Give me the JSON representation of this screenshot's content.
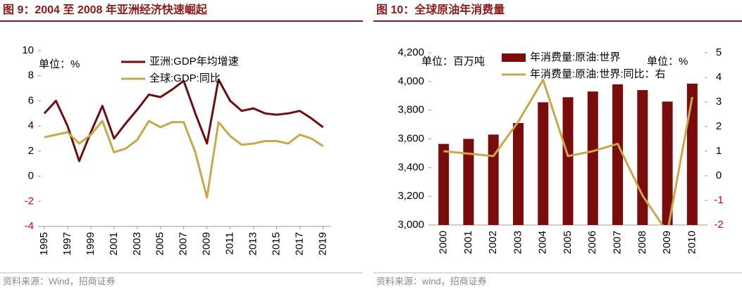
{
  "chart_data": [
    {
      "type": "line",
      "title": "图 9：2004 至 2008 年亚洲经济快速崛起",
      "unit": "单位：%",
      "source": "资料来源：Wind，招商证券",
      "x": [
        1995,
        1996,
        1997,
        1998,
        1999,
        2000,
        2001,
        2002,
        2003,
        2004,
        2005,
        2006,
        2007,
        2008,
        2009,
        2010,
        2011,
        2012,
        2013,
        2014,
        2015,
        2016,
        2017,
        2018,
        2019
      ],
      "xlim": [
        1994.7,
        2019.7
      ],
      "xticks": [
        1995,
        1997,
        1999,
        2001,
        2003,
        2005,
        2007,
        2009,
        2011,
        2013,
        2015,
        2017,
        2019
      ],
      "ylim": [
        -4,
        10
      ],
      "yticks": [
        -4,
        -2,
        0,
        2,
        4,
        6,
        8,
        10
      ],
      "series": [
        {
          "name": "亚洲:GDP年均增速",
          "color": "#6b0f12",
          "values": [
            5.0,
            6.0,
            4.0,
            1.2,
            3.5,
            5.6,
            3.0,
            4.2,
            5.3,
            6.5,
            6.3,
            6.9,
            7.6,
            5.0,
            2.6,
            7.7,
            6.0,
            5.2,
            5.4,
            5.0,
            4.9,
            5.0,
            5.2,
            4.6,
            3.9
          ]
        },
        {
          "name": "全球:GDP:同比",
          "color": "#c8a84b",
          "values": [
            3.1,
            3.3,
            3.5,
            2.6,
            3.3,
            4.4,
            1.9,
            2.2,
            2.9,
            4.4,
            3.9,
            4.3,
            4.3,
            1.9,
            -1.7,
            4.3,
            3.2,
            2.5,
            2.6,
            2.8,
            2.8,
            2.6,
            3.3,
            3.0,
            2.4
          ]
        }
      ]
    },
    {
      "type": "bar",
      "title": "图 10：全球原油年消费量",
      "unit": "单位：百万吨",
      "unit2": "单位：%",
      "source": "资料来源：wind，招商证券",
      "categories": [
        "2000",
        "2001",
        "2002",
        "2003",
        "2004",
        "2005",
        "2006",
        "2007",
        "2008",
        "2009",
        "2010"
      ],
      "ylim": [
        3000,
        4200
      ],
      "yticks": [
        {
          "value": 3000,
          "label": "3,000"
        },
        {
          "value": 3200,
          "label": "3,200"
        },
        {
          "value": 3400,
          "label": "3,400"
        },
        {
          "value": 3600,
          "label": "3,600"
        },
        {
          "value": 3800,
          "label": "3,800"
        },
        {
          "value": 4000,
          "label": "4,000"
        },
        {
          "value": 4200,
          "label": "4,200"
        }
      ],
      "y2lim": [
        -2,
        5
      ],
      "y2ticks": [
        -2,
        -1,
        0,
        1,
        2,
        3,
        4,
        5
      ],
      "series": [
        {
          "name": "年消费量:原油:世界",
          "color": "#7a0c0c",
          "values": [
            3565,
            3600,
            3630,
            3710,
            3855,
            3890,
            3930,
            3980,
            3940,
            3860,
            3985
          ]
        },
        {
          "name": "年消费量:原油:世界:同比：右",
          "color": "#c8a84b",
          "axis": "y2",
          "values": [
            1.0,
            0.9,
            0.8,
            2.2,
            3.9,
            0.8,
            1.0,
            1.3,
            -0.8,
            -2.3,
            3.2
          ]
        }
      ]
    }
  ]
}
